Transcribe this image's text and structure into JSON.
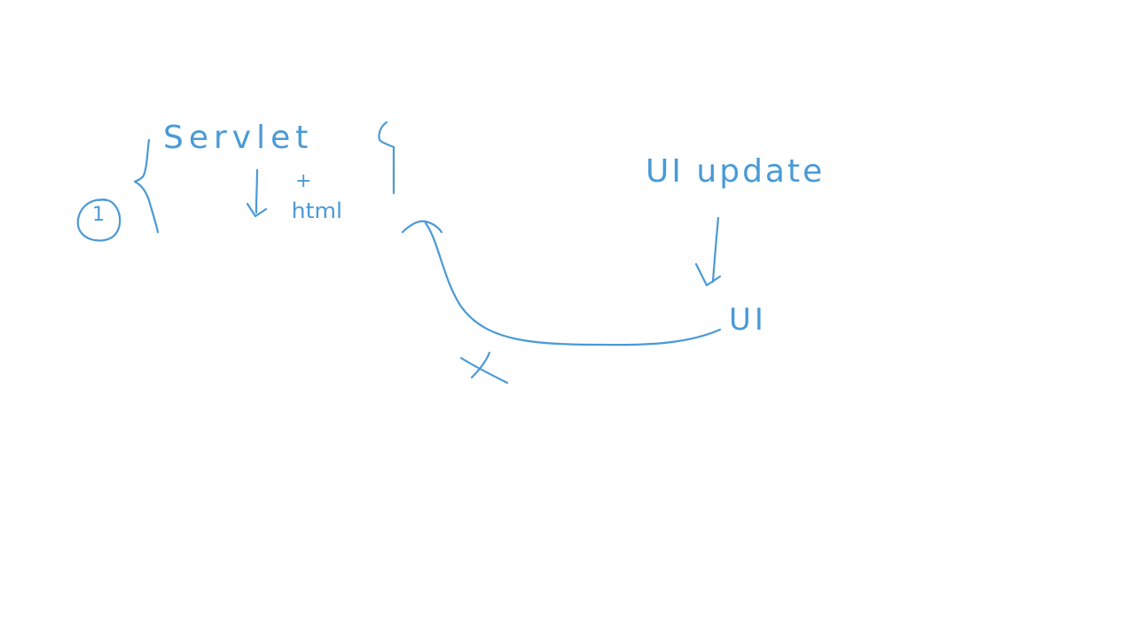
{
  "board": {
    "step_number": "1",
    "servlet_label": "Servlet",
    "plus_sign": "+",
    "html_label": "html",
    "ui_update_label": "UI update",
    "ui_label": "UI",
    "reject_mark": "X"
  },
  "colors": {
    "ink": "#4a9ad6",
    "background": "#ffffff"
  }
}
